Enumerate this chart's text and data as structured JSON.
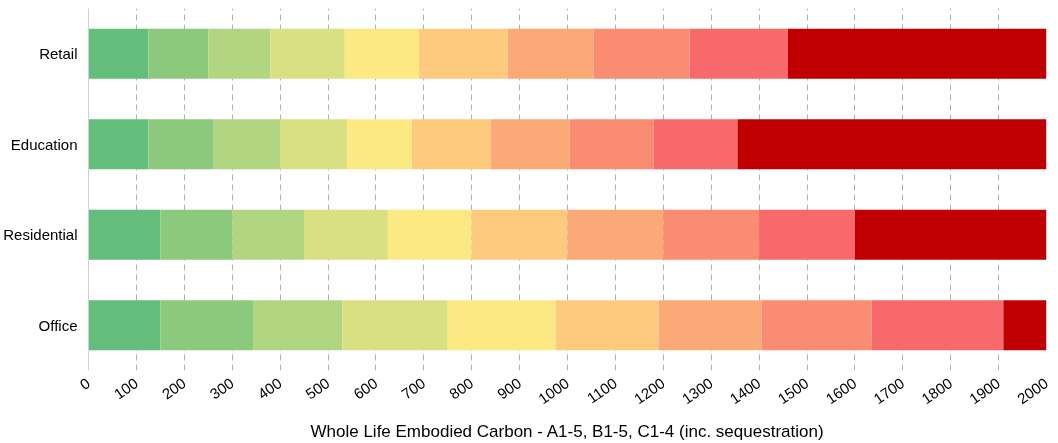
{
  "chart_data": {
    "type": "bar",
    "orientation": "horizontal",
    "stacked": true,
    "xlabel": "Whole Life Embodied Carbon - A1-5, B1-5, C1-4 (inc. sequestration)",
    "categories": [
      "Retail",
      "Education",
      "Residential",
      "Office"
    ],
    "series": [
      {
        "color": "#63be7b",
        "values": [
          125,
          125,
          150,
          150
        ]
      },
      {
        "color": "#8bc97d",
        "values": [
          125,
          135,
          150,
          195
        ]
      },
      {
        "color": "#b1d580",
        "values": [
          130,
          140,
          150,
          185
        ]
      },
      {
        "color": "#d9e082",
        "values": [
          155,
          140,
          175,
          220
        ]
      },
      {
        "color": "#fde983",
        "values": [
          155,
          135,
          175,
          225
        ]
      },
      {
        "color": "#fdca7e",
        "values": [
          185,
          165,
          200,
          215
        ]
      },
      {
        "color": "#fbaa77",
        "values": [
          180,
          165,
          200,
          215
        ]
      },
      {
        "color": "#fa8c72",
        "values": [
          200,
          175,
          200,
          230
        ]
      },
      {
        "color": "#f8696b",
        "values": [
          205,
          175,
          200,
          275
        ]
      },
      {
        "color": "#c00000",
        "values": [
          540,
          645,
          400,
          90
        ]
      }
    ],
    "xlim": [
      0,
      2000
    ],
    "xticks": [
      0,
      100,
      200,
      300,
      400,
      500,
      600,
      700,
      800,
      900,
      1000,
      1100,
      1200,
      1300,
      1400,
      1500,
      1600,
      1700,
      1800,
      1900,
      2000
    ],
    "grid": "x"
  }
}
